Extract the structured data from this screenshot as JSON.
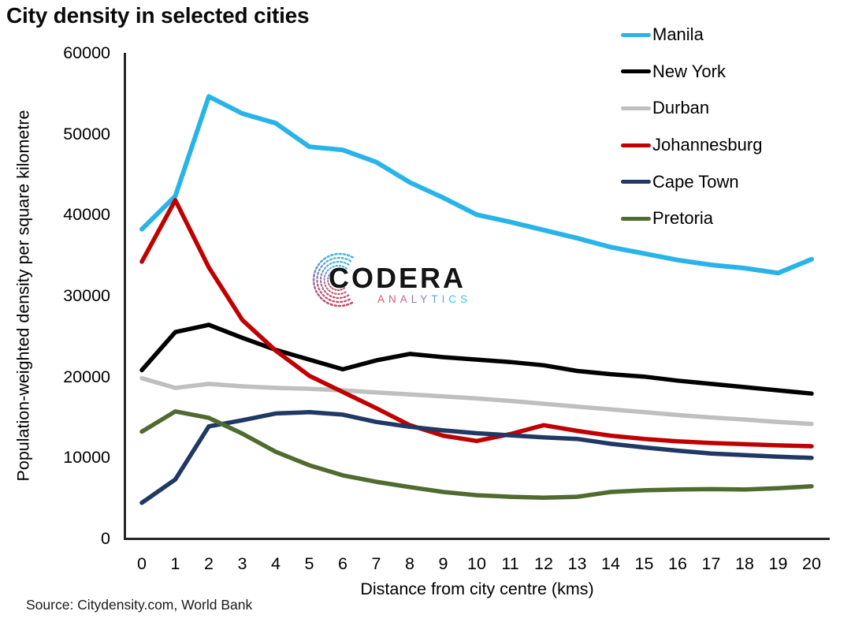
{
  "title": "City density in selected cities",
  "source": "Source: Citydensity.com, World Bank",
  "watermark": {
    "name": "CODERA",
    "sub": "ANALYTICS"
  },
  "chart_data": {
    "type": "line",
    "title": "City density in selected cities",
    "xlabel": "Distance from city centre (kms)",
    "ylabel": "Population-weighted density per square kilometre",
    "x": [
      0,
      1,
      2,
      3,
      4,
      5,
      6,
      7,
      8,
      9,
      10,
      11,
      12,
      13,
      14,
      15,
      16,
      17,
      18,
      19,
      20
    ],
    "xticks": [
      0,
      1,
      2,
      3,
      4,
      5,
      6,
      7,
      8,
      9,
      10,
      11,
      12,
      13,
      14,
      15,
      16,
      17,
      18,
      19,
      20
    ],
    "yticks": [
      0,
      10000,
      20000,
      30000,
      40000,
      50000,
      60000
    ],
    "ylim": [
      0,
      60000
    ],
    "xlim": [
      0,
      20
    ],
    "grid": false,
    "legend_position": "top-right",
    "series": [
      {
        "name": "Manila",
        "color": "#29b4e8",
        "width": 6,
        "values": [
          38200,
          42300,
          54600,
          52500,
          51300,
          48400,
          48000,
          46500,
          44000,
          42100,
          40000,
          39100,
          38100,
          37100,
          36000,
          35200,
          34400,
          33800,
          33400,
          32800,
          34500
        ]
      },
      {
        "name": "New York",
        "color": "#000000",
        "width": 5.5,
        "values": [
          20800,
          25500,
          26400,
          24800,
          23300,
          22100,
          20900,
          22000,
          22800,
          22400,
          22100,
          21800,
          21400,
          20700,
          20300,
          20000,
          19500,
          19100,
          18700,
          18300,
          17900
        ]
      },
      {
        "name": "Durban",
        "color": "#bfbfbf",
        "width": 5.5,
        "values": [
          19800,
          18600,
          19100,
          18800,
          18600,
          18500,
          18300,
          18050,
          17800,
          17550,
          17300,
          17000,
          16650,
          16300,
          15950,
          15600,
          15250,
          14950,
          14700,
          14400,
          14150
        ]
      },
      {
        "name": "Johannesburg",
        "color": "#c00000",
        "width": 5.5,
        "values": [
          34200,
          41800,
          33500,
          27000,
          23200,
          20100,
          18100,
          16100,
          14000,
          12700,
          12050,
          12900,
          14000,
          13300,
          12700,
          12300,
          12000,
          11800,
          11650,
          11500,
          11400
        ]
      },
      {
        "name": "Cape Town",
        "color": "#1f3864",
        "width": 5.5,
        "values": [
          4400,
          7300,
          13850,
          14600,
          15450,
          15600,
          15300,
          14400,
          13800,
          13350,
          13000,
          12750,
          12500,
          12300,
          11700,
          11250,
          10850,
          10500,
          10300,
          10100,
          9950
        ]
      },
      {
        "name": "Pretoria",
        "color": "#4f6b2f",
        "width": 5.5,
        "values": [
          13200,
          15700,
          14900,
          12950,
          10700,
          9050,
          7800,
          7000,
          6350,
          5750,
          5350,
          5150,
          5050,
          5150,
          5750,
          5950,
          6050,
          6100,
          6050,
          6200,
          6450
        ]
      }
    ]
  },
  "axis": {
    "color": "#262626"
  }
}
